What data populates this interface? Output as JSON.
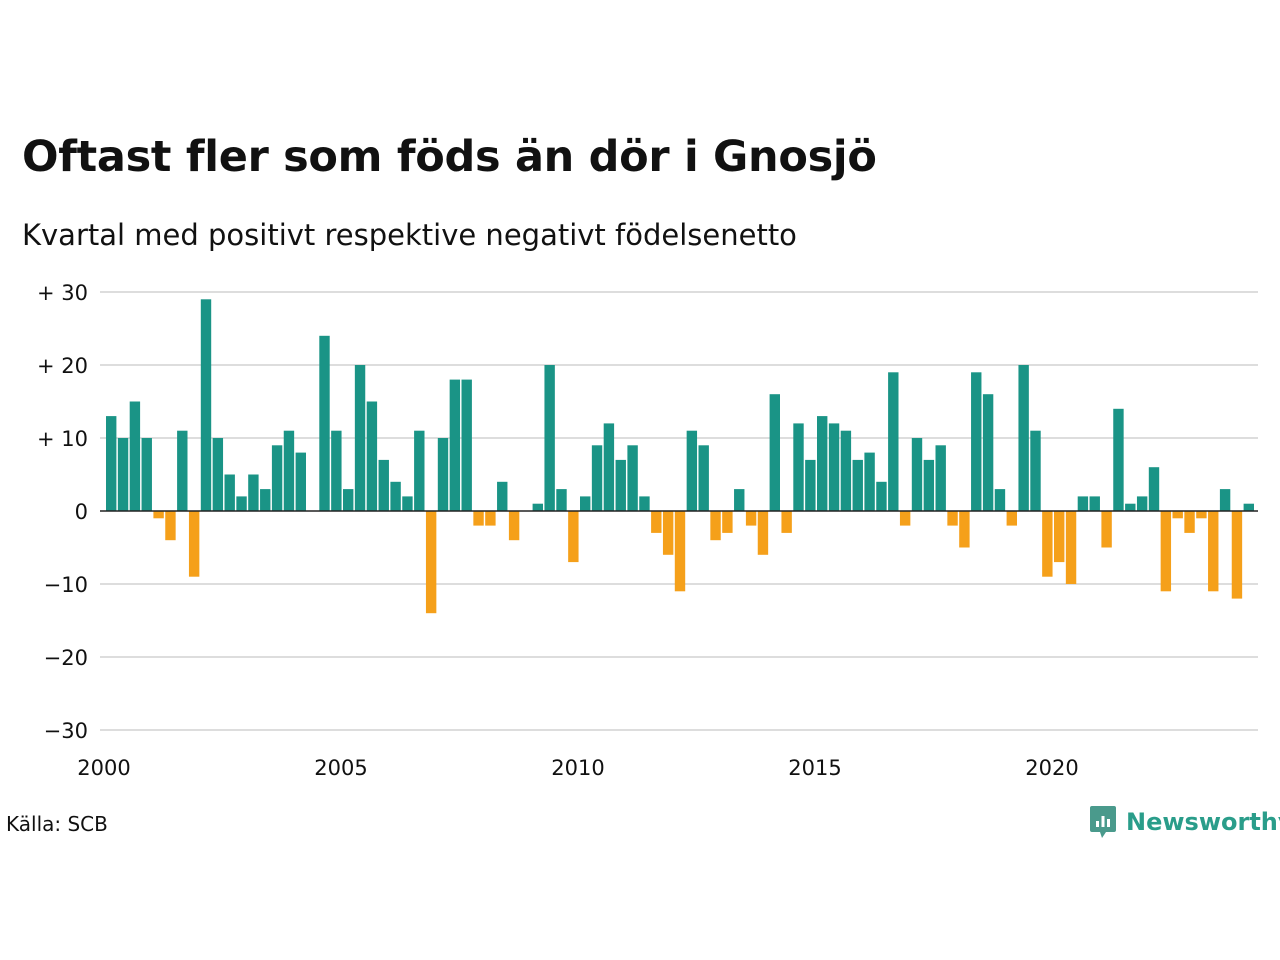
{
  "title": "Oftast fler som föds än dör i Gnosjö",
  "subtitle": "Kvartal med positivt respektive negativt födelsenetto",
  "source": "Källa: SCB",
  "logo": {
    "name": "Newsworthy",
    "icon": "newsworthy-logo-icon"
  },
  "colors": {
    "positive": "#1a9486",
    "negative": "#f5a01a",
    "grid": "#dddddd",
    "axis": "#222222"
  },
  "chart_data": {
    "type": "bar",
    "start_year": 2000,
    "x_ticks": [
      "2000",
      "2005",
      "2010",
      "2015",
      "2020"
    ],
    "y_ticks": [
      {
        "value": 30,
        "label": "+ 30"
      },
      {
        "value": 20,
        "label": "+ 20"
      },
      {
        "value": 10,
        "label": "+ 10"
      },
      {
        "value": 0,
        "label": "0"
      },
      {
        "value": -10,
        "label": "−10"
      },
      {
        "value": -20,
        "label": "−20"
      },
      {
        "value": -30,
        "label": "−30"
      }
    ],
    "ylim": [
      -30,
      30
    ],
    "grid": true,
    "values": [
      13,
      10,
      15,
      10,
      -1,
      -4,
      11,
      -9,
      29,
      10,
      5,
      2,
      5,
      3,
      9,
      11,
      8,
      0,
      24,
      11,
      3,
      20,
      15,
      7,
      4,
      2,
      11,
      -14,
      10,
      18,
      18,
      -2,
      -2,
      4,
      -4,
      0,
      1,
      20,
      3,
      -7,
      2,
      9,
      12,
      7,
      9,
      2,
      -3,
      -6,
      -11,
      11,
      9,
      -4,
      -3,
      3,
      -2,
      -6,
      16,
      -3,
      12,
      7,
      13,
      12,
      11,
      7,
      8,
      4,
      19,
      -2,
      10,
      7,
      9,
      -2,
      -5,
      19,
      16,
      3,
      -2,
      20,
      11,
      -9,
      -7,
      -10,
      2,
      2,
      -5,
      14,
      1,
      2,
      6,
      -11,
      -1,
      -3,
      -1,
      -11,
      3,
      -12,
      1
    ]
  }
}
